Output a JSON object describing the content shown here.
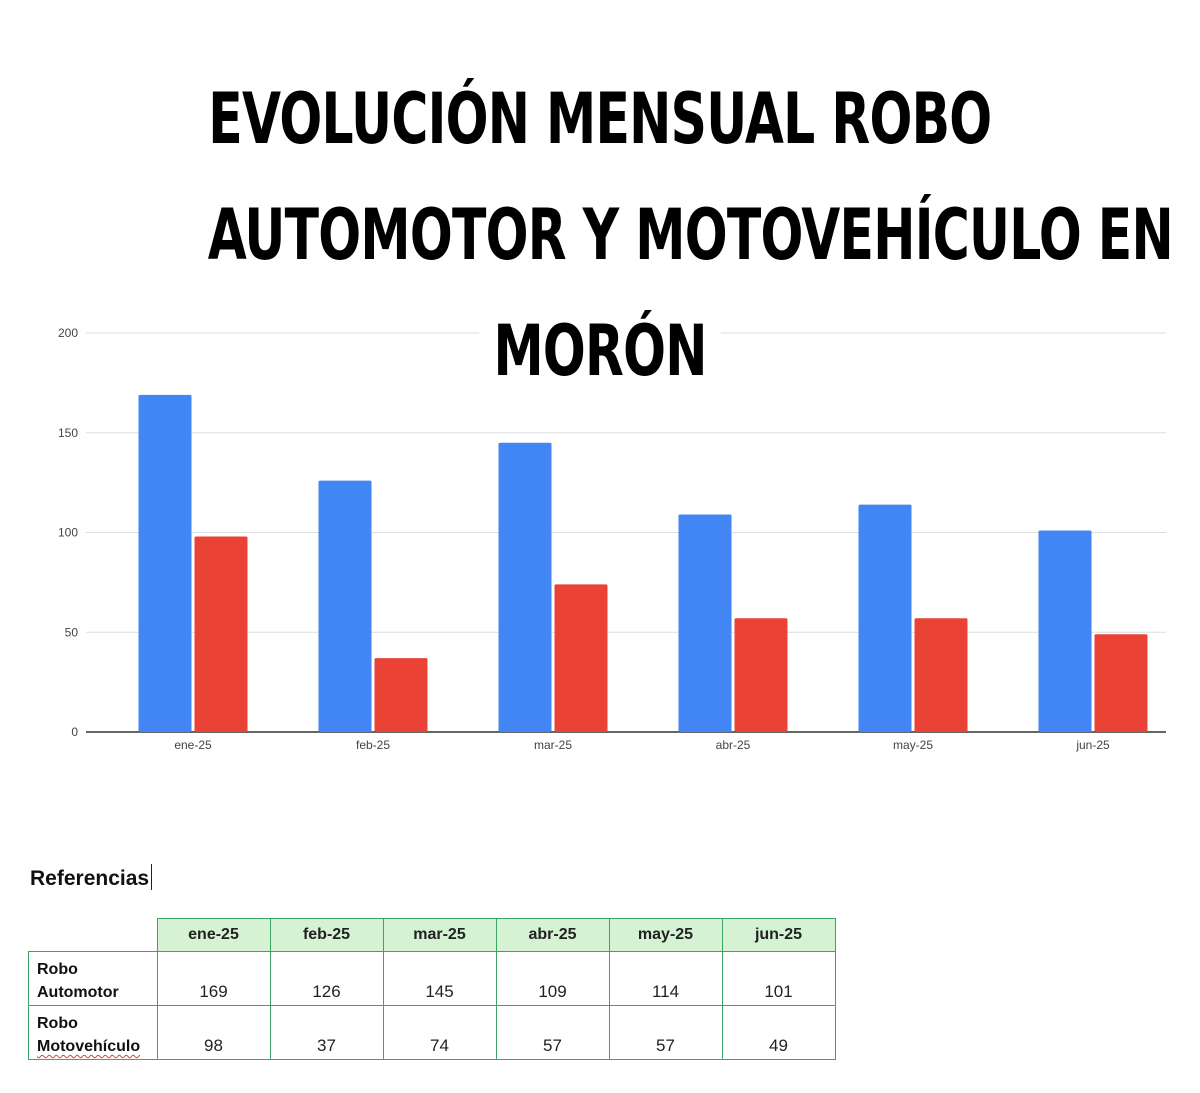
{
  "chart_data": {
    "type": "bar",
    "title": "EVOLUCIÓN MENSUAL ROBO AUTOMOTOR Y MOTOVEHÍCULO EN MORÓN",
    "title_lines": [
      "EVOLUCIÓN MENSUAL ROBO",
      "AUTOMOTOR Y MOTOVEHÍCULO EN",
      "MORÓN"
    ],
    "categories": [
      "ene-25",
      "feb-25",
      "mar-25",
      "abr-25",
      "may-25",
      "jun-25"
    ],
    "series": [
      {
        "name": "Robo Automotor",
        "color": "#4285f4",
        "values": [
          169,
          126,
          145,
          109,
          114,
          101
        ]
      },
      {
        "name": "Robo Motovehículo",
        "color": "#ea4335",
        "values": [
          98,
          37,
          74,
          57,
          57,
          49
        ]
      }
    ],
    "ylim": [
      0,
      200
    ],
    "yticks": [
      0,
      50,
      100,
      150,
      200
    ],
    "grid": true,
    "xlabel": "",
    "ylabel": ""
  },
  "references": {
    "heading": "Referencias",
    "columns": [
      "ene-25",
      "feb-25",
      "mar-25",
      "abr-25",
      "may-25",
      "jun-25"
    ],
    "rows": [
      {
        "label_line1": "Robo",
        "label_line2": "Automotor",
        "values": [
          "169",
          "126",
          "145",
          "109",
          "114",
          "101"
        ]
      },
      {
        "label_line1": "Robo",
        "label_line2": "Motovehículo",
        "values": [
          "98",
          "37",
          "74",
          "57",
          "57",
          "49"
        ]
      }
    ],
    "border_color": "#3aa564",
    "header_fill": "#d5f2d3"
  }
}
